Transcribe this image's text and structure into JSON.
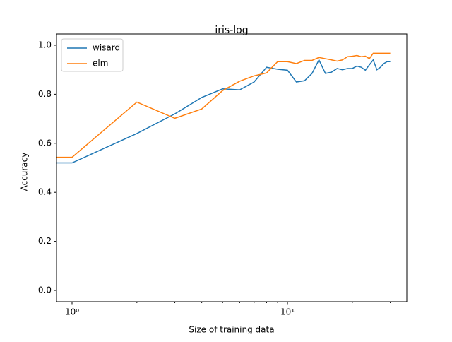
{
  "chart_data": {
    "type": "line",
    "title": "iris-log",
    "x_label": "Size of training data",
    "y_label": "Accuracy",
    "x": [
      0.85,
      1,
      2,
      3,
      4,
      5,
      6,
      7,
      8,
      9,
      10,
      11,
      12,
      13,
      14,
      15,
      16,
      17,
      18,
      19,
      20,
      21,
      22,
      23,
      24,
      25,
      26,
      27,
      28,
      29,
      30
    ],
    "series": [
      {
        "name": "wisard",
        "color": "#1f77b4",
        "values": [
          0.52,
          0.52,
          0.64,
          0.72,
          0.787,
          0.822,
          0.818,
          0.85,
          0.91,
          0.902,
          0.898,
          0.85,
          0.855,
          0.885,
          0.94,
          0.885,
          0.89,
          0.905,
          0.9,
          0.905,
          0.905,
          0.915,
          0.91,
          0.898,
          0.92,
          0.94,
          0.9,
          0.91,
          0.925,
          0.933,
          0.933
        ]
      },
      {
        "name": "elm",
        "color": "#ff7f0e",
        "values": [
          0.543,
          0.543,
          0.768,
          0.702,
          0.74,
          0.815,
          0.853,
          0.875,
          0.887,
          0.933,
          0.933,
          0.925,
          0.938,
          0.938,
          0.95,
          0.945,
          0.94,
          0.935,
          0.94,
          0.953,
          0.955,
          0.958,
          0.953,
          0.955,
          0.945,
          0.967,
          0.967,
          0.967,
          0.967,
          0.967,
          0.967
        ]
      }
    ],
    "xscale": "log",
    "xlim": [
      0.847,
      35.8
    ],
    "xticks": [
      {
        "value": 1,
        "label": "10⁰"
      },
      {
        "value": 10,
        "label": "10¹"
      }
    ],
    "xminorticks": [
      2,
      3,
      4,
      5,
      6,
      7,
      8,
      9,
      20,
      30
    ],
    "ylim": [
      -0.046,
      1.046
    ],
    "yticks": [
      {
        "value": 0,
        "label": "0.0"
      },
      {
        "value": 0.2,
        "label": "0.2"
      },
      {
        "value": 0.4,
        "label": "0.4"
      },
      {
        "value": 0.6,
        "label": "0.6"
      },
      {
        "value": 0.8,
        "label": "0.8"
      },
      {
        "value": 1,
        "label": "1.0"
      }
    ],
    "legend": "upper left"
  }
}
